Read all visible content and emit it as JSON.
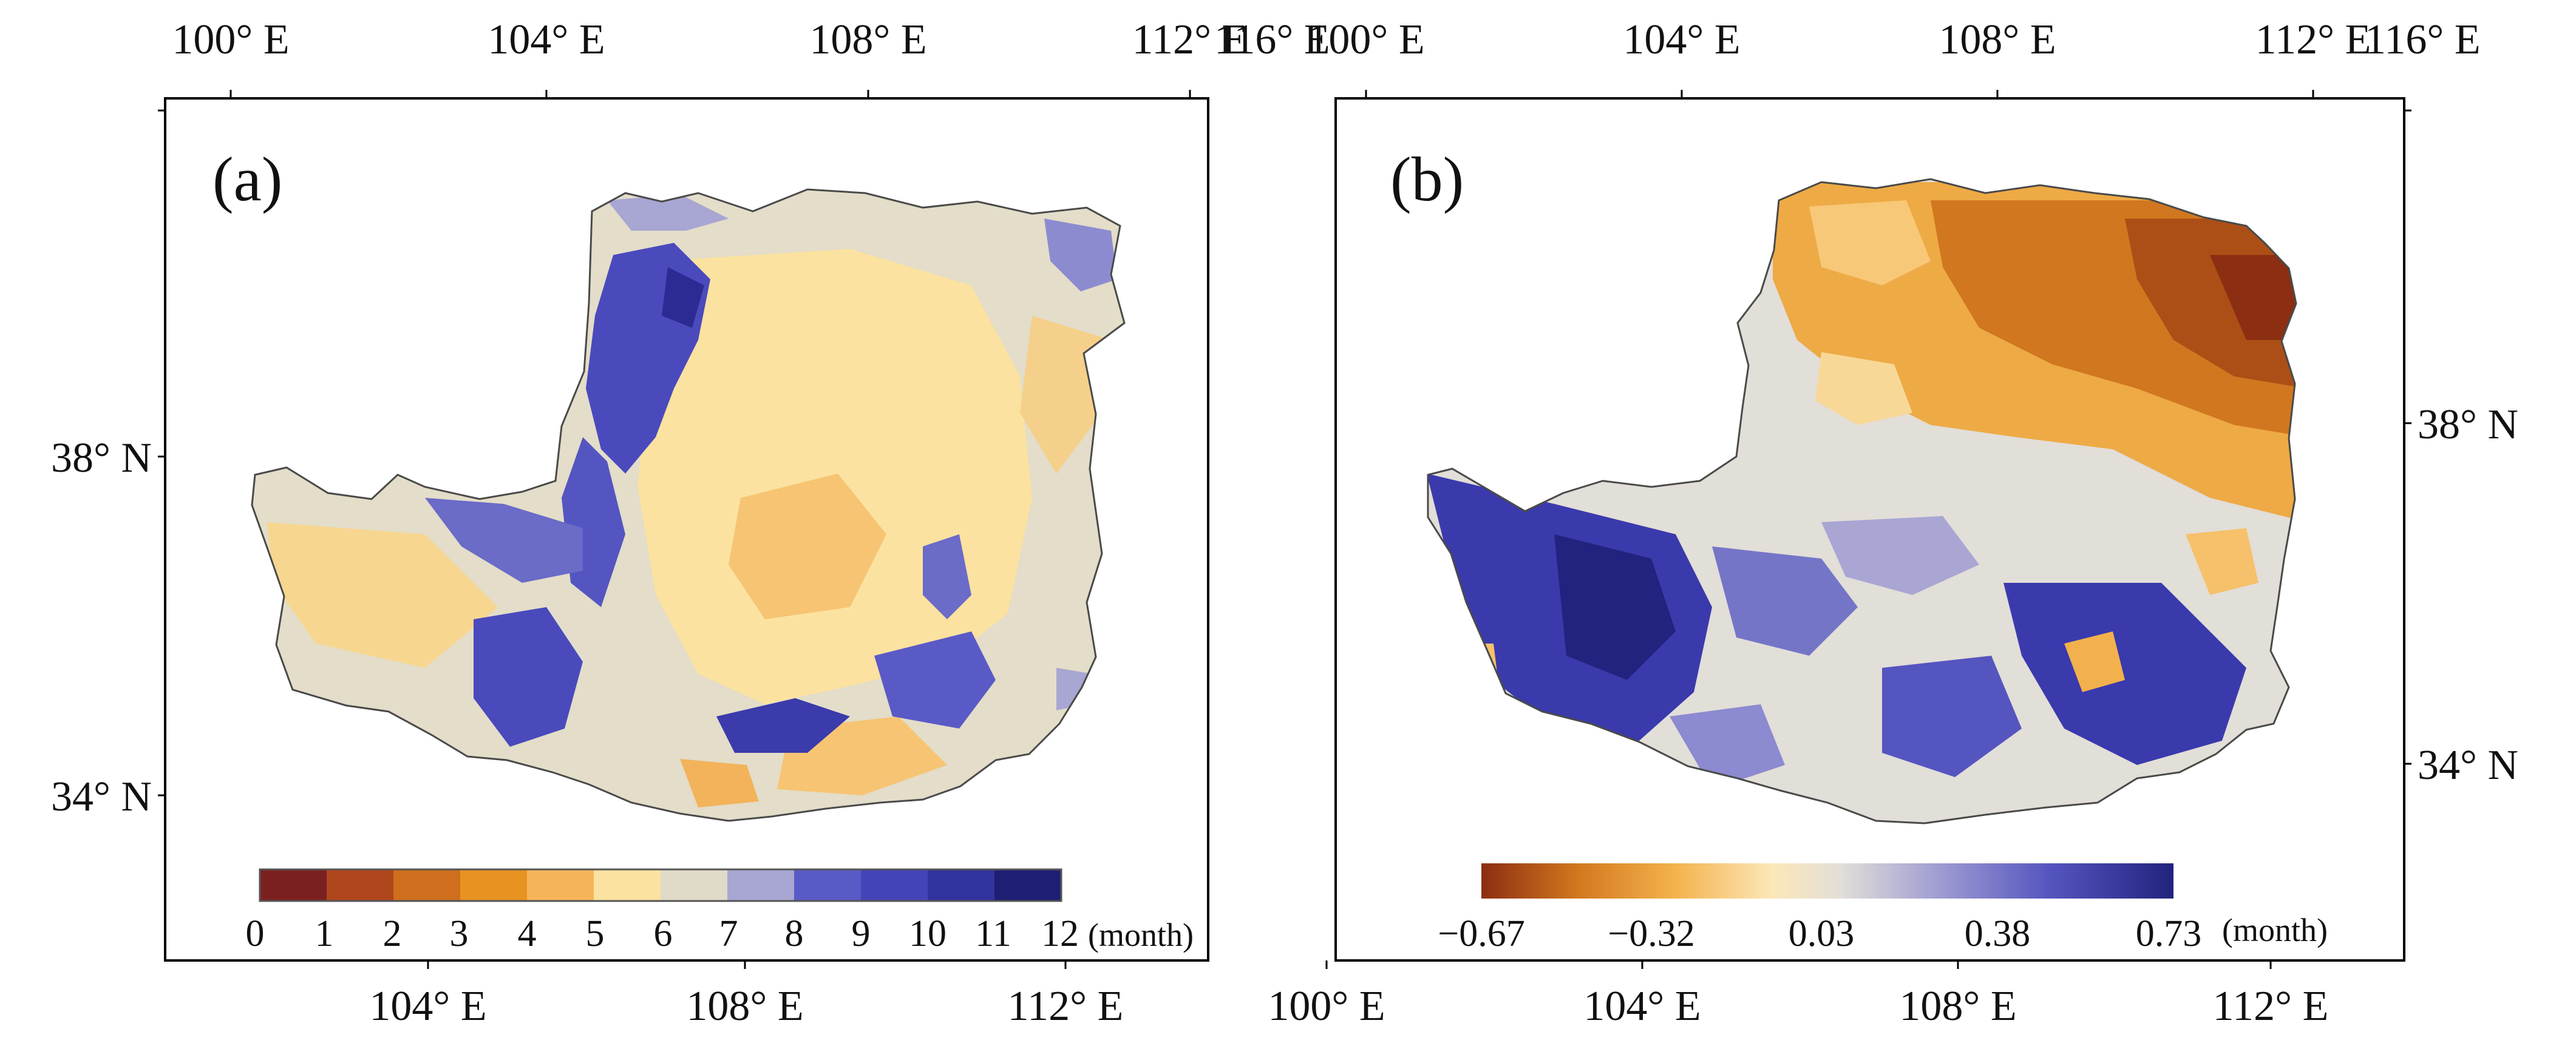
{
  "panels": [
    {
      "label": "(a)",
      "top_ticks": [
        "100° E",
        "104° E",
        "108° E",
        "112° E",
        "116° E"
      ],
      "bottom_ticks": [
        "104° E",
        "108° E",
        "112° E"
      ],
      "left_ticks": [
        "38° N",
        "34° N"
      ],
      "legend_kind": "discrete",
      "legend_labels": [
        "0",
        "1",
        "2",
        "3",
        "4",
        "5",
        "6",
        "7",
        "8",
        "9",
        "10",
        "11",
        "12"
      ],
      "legend_colors": [
        "#7a2020",
        "#b0461b",
        "#cf6e1c",
        "#e89222",
        "#f6b45a",
        "#fbe2a0",
        "#e0dac8",
        "#a8a6d2",
        "#5a5ac6",
        "#4444b8",
        "#33339e",
        "#1e1e74"
      ],
      "unit": "(month)"
    },
    {
      "label": "(b)",
      "top_ticks": [
        "100° E",
        "104° E",
        "108° E",
        "112° E",
        "116° E"
      ],
      "bottom_ticks": [
        "100° E",
        "104° E",
        "108° E",
        "112° E"
      ],
      "right_ticks": [
        "38° N",
        "34° N"
      ],
      "legend_kind": "continuous",
      "legend_labels": [
        "−0.67",
        "−0.32",
        "0.03",
        "0.38",
        "0.73"
      ],
      "legend_colors": [
        "#8b2e12",
        "#d3781e",
        "#f4b24d",
        "#fce7b8",
        "#e2ded8",
        "#a9a6d4",
        "#5555c0",
        "#22237e"
      ],
      "unit": "(month)"
    }
  ]
}
